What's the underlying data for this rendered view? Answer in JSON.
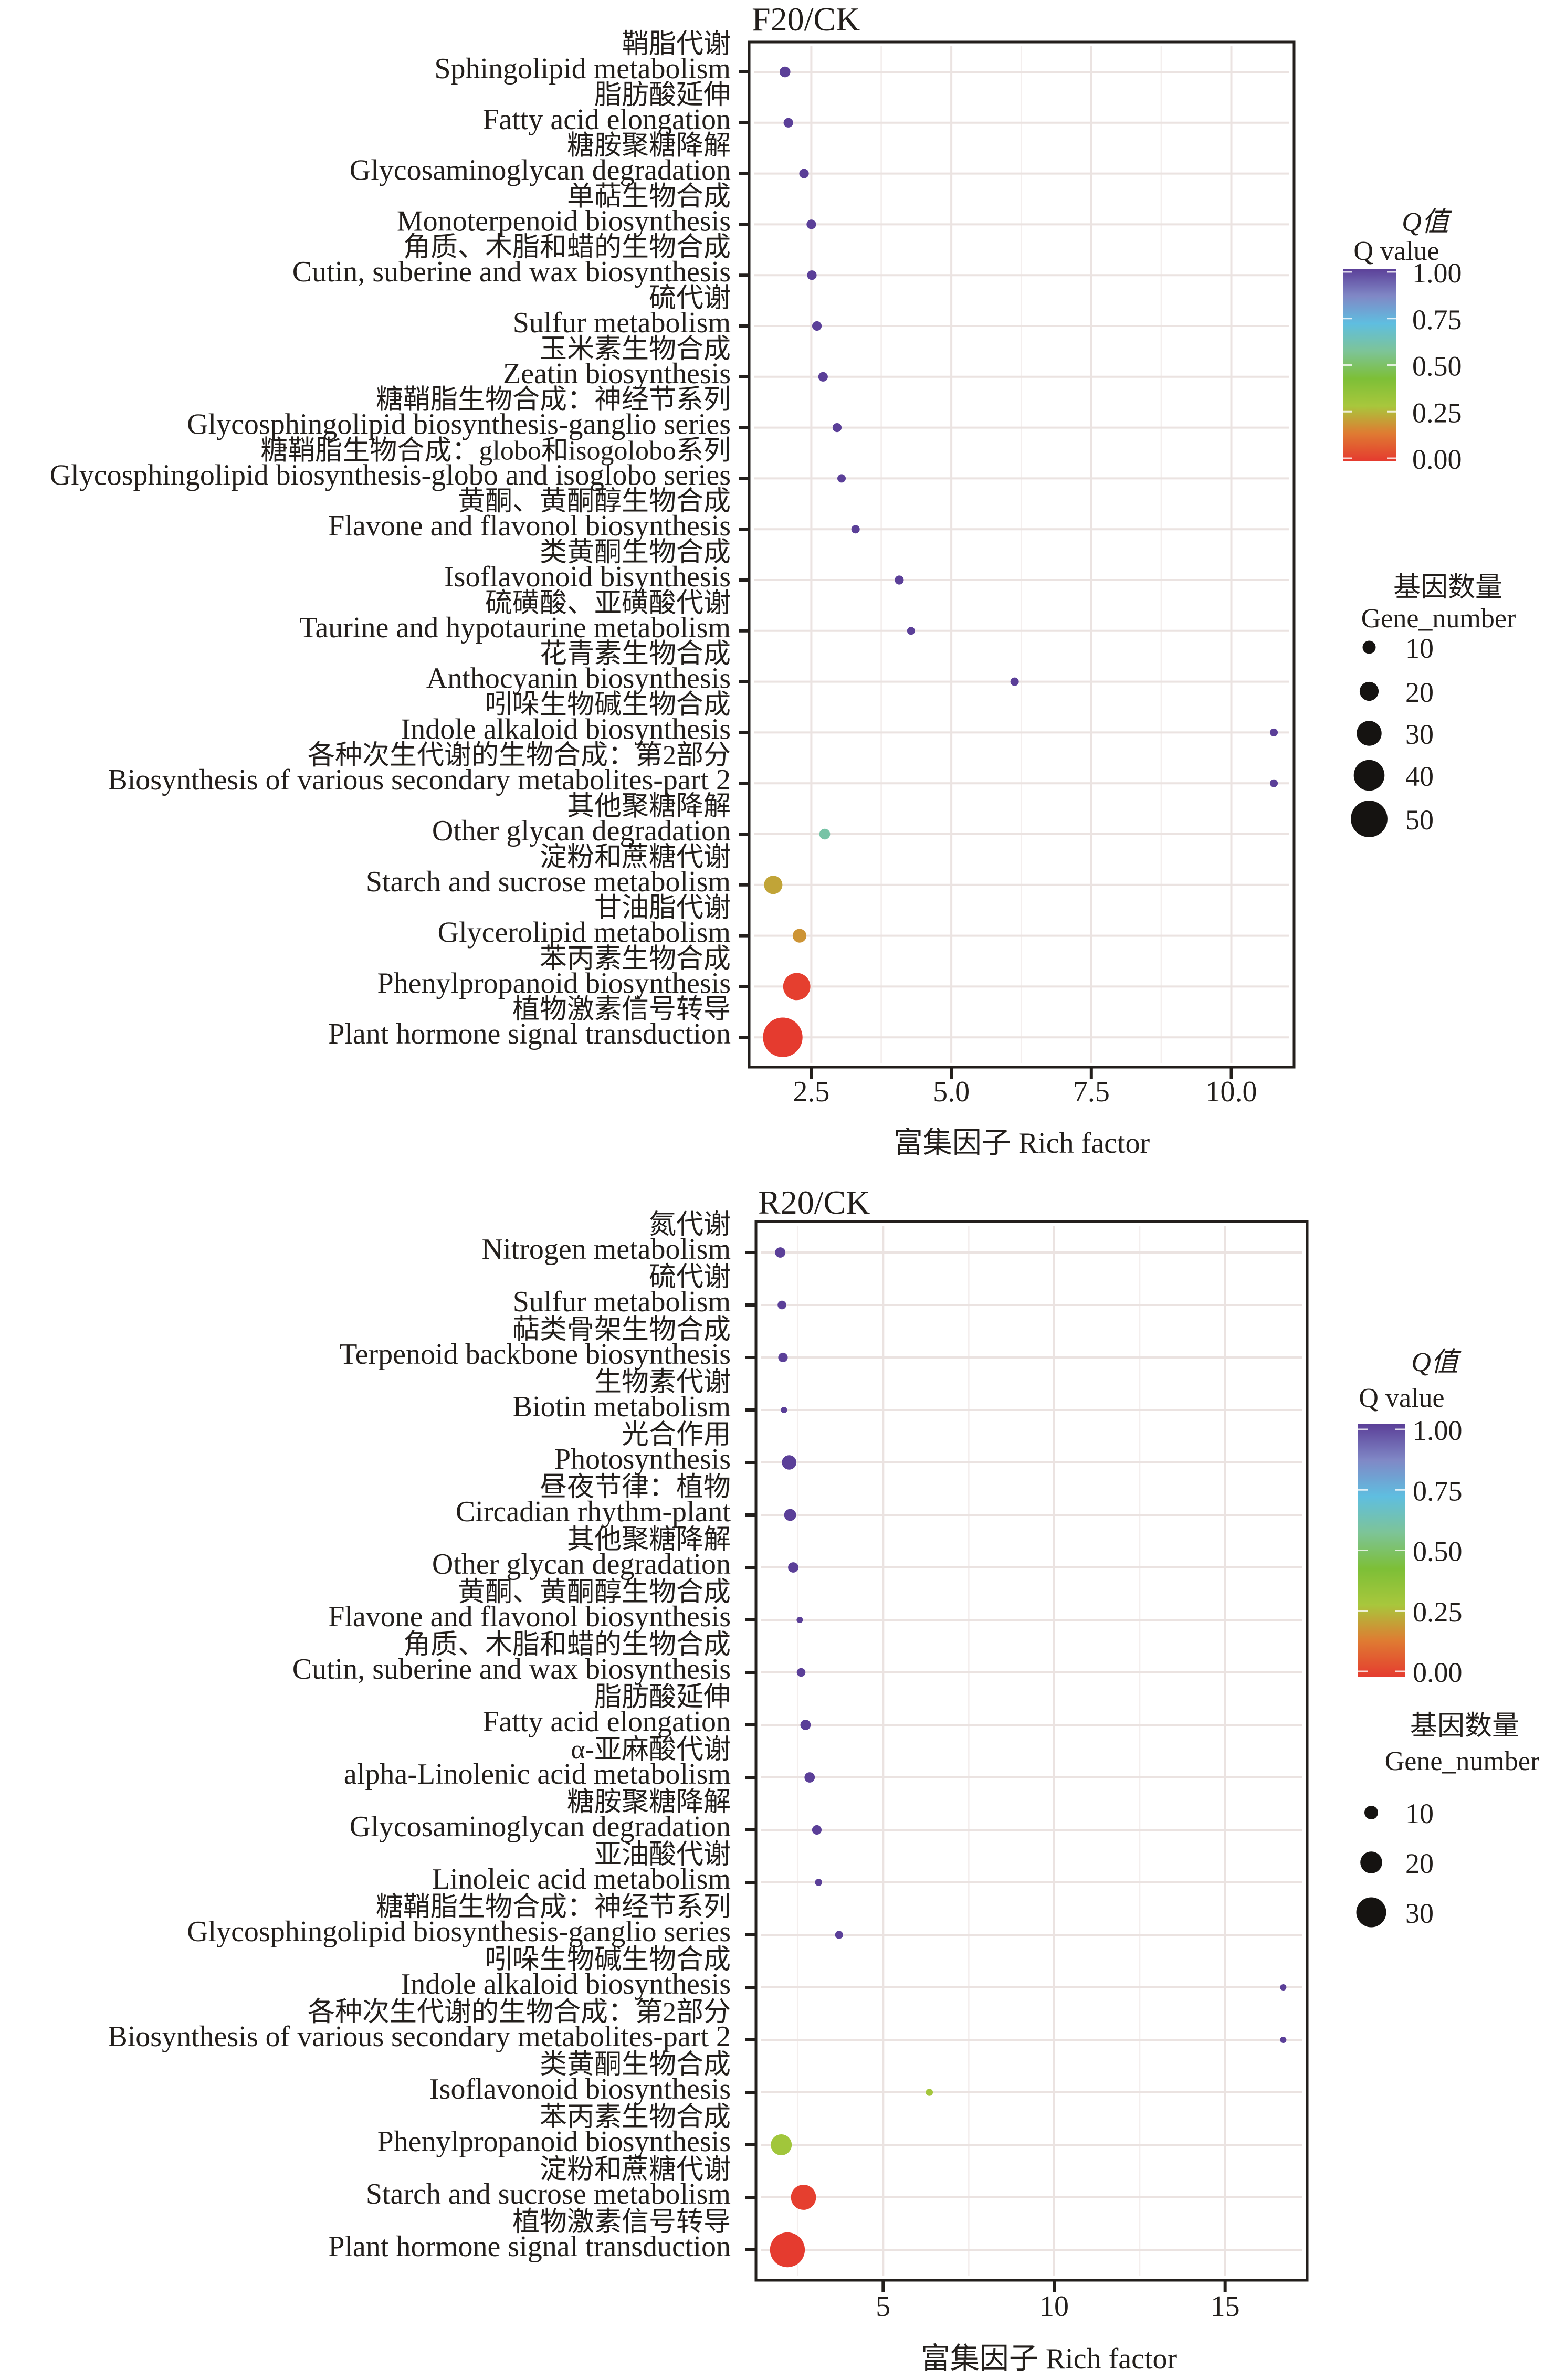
{
  "chart_data": [
    {
      "type": "scatter",
      "subtype": "bubble",
      "title": "F20/CK",
      "xlabel": "富集因子 Rich factor",
      "ylabel": "",
      "xlim": [
        1.39,
        11.12
      ],
      "xticks": [
        2.5,
        5.0,
        7.5,
        10.0
      ],
      "xtick_labels": [
        "2.5",
        "5.0",
        "7.5",
        "10.0"
      ],
      "grid": true,
      "categories": [
        {
          "zh": "鞘脂代谢",
          "en": "Sphingolipid metabolism",
          "rich_factor": 2.03,
          "q_value": 1.0,
          "gene_number": 6
        },
        {
          "zh": "脂肪酸延伸",
          "en": "Fatty acid elongation",
          "rich_factor": 2.09,
          "q_value": 1.0,
          "gene_number": 4
        },
        {
          "zh": "糖胺聚糖降解",
          "en": "Glycosaminoglycan degradation",
          "rich_factor": 2.37,
          "q_value": 1.0,
          "gene_number": 4
        },
        {
          "zh": "单萜生物合成",
          "en": "Monoterpenoid biosynthesis",
          "rich_factor": 2.5,
          "q_value": 1.0,
          "gene_number": 4
        },
        {
          "zh": "角质、木脂和蜡的生物合成",
          "en": "Cutin, suberine and wax biosynthesis",
          "rich_factor": 2.51,
          "q_value": 1.0,
          "gene_number": 4
        },
        {
          "zh": "硫代谢",
          "en": "Sulfur metabolism",
          "rich_factor": 2.6,
          "q_value": 1.0,
          "gene_number": 4
        },
        {
          "zh": "玉米素生物合成",
          "en": "Zeatin biosynthesis",
          "rich_factor": 2.71,
          "q_value": 1.0,
          "gene_number": 4
        },
        {
          "zh": "糖鞘脂生物合成：神经节系列",
          "en": "Glycosphingolipid biosynthesis-ganglio series",
          "rich_factor": 2.96,
          "q_value": 1.0,
          "gene_number": 3
        },
        {
          "zh": "糖鞘脂生物合成：globo和isogolobo系列",
          "en": "Glycosphingolipid biosynthesis-globo and isoglobo series",
          "rich_factor": 3.04,
          "q_value": 1.0,
          "gene_number": 2
        },
        {
          "zh": "黄酮、黄酮醇生物合成",
          "en": "Flavone and flavonol biosynthesis",
          "rich_factor": 3.29,
          "q_value": 1.0,
          "gene_number": 2
        },
        {
          "zh": "类黄酮生物合成",
          "en": "Isoflavonoid bisynthesis",
          "rich_factor": 4.07,
          "q_value": 1.0,
          "gene_number": 3
        },
        {
          "zh": "硫磺酸、亚磺酸代谢",
          "en": "Taurine and hypotaurine metabolism",
          "rich_factor": 4.28,
          "q_value": 1.0,
          "gene_number": 1
        },
        {
          "zh": "花青素生物合成",
          "en": "Anthocyanin biosynthesis",
          "rich_factor": 6.13,
          "q_value": 1.0,
          "gene_number": 2
        },
        {
          "zh": "吲哚生物碱生物合成",
          "en": "Indole alkaloid biosynthesis",
          "rich_factor": 10.76,
          "q_value": 1.0,
          "gene_number": 1
        },
        {
          "zh": "各种次生代谢的生物合成：第2部分",
          "en": "Biosynthesis of various secondary metabolites-part 2",
          "rich_factor": 10.76,
          "q_value": 1.0,
          "gene_number": 1
        },
        {
          "zh": "其他聚糖降解",
          "en": "Other glycan degradation",
          "rich_factor": 2.74,
          "q_value": 0.6,
          "gene_number": 6
        },
        {
          "zh": "淀粉和蔗糖代谢",
          "en": "Starch and sucrose metabolism",
          "rich_factor": 1.82,
          "q_value": 0.22,
          "gene_number": 19
        },
        {
          "zh": "甘油脂代谢",
          "en": "Glycerolipid metabolism",
          "rich_factor": 2.29,
          "q_value": 0.19,
          "gene_number": 11
        },
        {
          "zh": "苯丙素生物合成",
          "en": "Phenylpropanoid biosynthesis",
          "rich_factor": 2.24,
          "q_value": 0.01,
          "gene_number": 34
        },
        {
          "zh": "植物激素信号转导",
          "en": "Plant hormone signal transduction",
          "rich_factor": 1.99,
          "q_value": 0.0,
          "gene_number": 55
        }
      ],
      "color_legend": {
        "title_zh": "Q值",
        "title_en": "Q value",
        "ticks": [
          "1.00",
          "0.75",
          "0.50",
          "0.25",
          "0.00"
        ],
        "range": [
          0,
          1
        ],
        "colors": [
          "#e53b2f",
          "#df7b32",
          "#a8c73c",
          "#7dbf37",
          "#7dc498",
          "#5fbee0",
          "#8088c6",
          "#5b3f98"
        ]
      },
      "size_legend": {
        "title_zh": "基因数量",
        "title_en": "Gene_number",
        "values": [
          10,
          20,
          30,
          40,
          50
        ],
        "labels": [
          "10",
          "20",
          "30",
          "40",
          "50"
        ]
      },
      "legend_position": "right"
    },
    {
      "type": "scatter",
      "subtype": "bubble",
      "title": "R20/CK",
      "xlabel": "富集因子 Rich factor",
      "ylabel": "",
      "xlim": [
        1.28,
        17.4
      ],
      "xticks": [
        5,
        10,
        15
      ],
      "xtick_labels": [
        "5",
        "10",
        "15"
      ],
      "grid": true,
      "categories": [
        {
          "zh": "氮代谢",
          "en": "Nitrogen metabolism",
          "rich_factor": 1.99,
          "q_value": 1.0,
          "gene_number": 6
        },
        {
          "zh": "硫代谢",
          "en": "Sulfur metabolism",
          "rich_factor": 2.04,
          "q_value": 1.0,
          "gene_number": 4
        },
        {
          "zh": "萜类骨架生物合成",
          "en": "Terpenoid backbone biosynthesis",
          "rich_factor": 2.07,
          "q_value": 1.0,
          "gene_number": 5
        },
        {
          "zh": "生物素代谢",
          "en": "Biotin metabolism",
          "rich_factor": 2.1,
          "q_value": 1.0,
          "gene_number": 1
        },
        {
          "zh": "光合作用",
          "en": "Photosynthesis",
          "rich_factor": 2.25,
          "q_value": 1.0,
          "gene_number": 11
        },
        {
          "zh": "昼夜节律：植物",
          "en": "Circadian rhythm-plant",
          "rich_factor": 2.28,
          "q_value": 1.0,
          "gene_number": 8
        },
        {
          "zh": "其他聚糖降解",
          "en": "Other glycan degradation",
          "rich_factor": 2.37,
          "q_value": 1.0,
          "gene_number": 6
        },
        {
          "zh": "黄酮、黄酮醇生物合成",
          "en": "Flavone and flavonol biosynthesis",
          "rich_factor": 2.56,
          "q_value": 1.0,
          "gene_number": 1
        },
        {
          "zh": "角质、木脂和蜡的生物合成",
          "en": "Cutin, suberine and wax biosynthesis",
          "rich_factor": 2.6,
          "q_value": 1.0,
          "gene_number": 4
        },
        {
          "zh": "脂肪酸延伸",
          "en": "Fatty acid elongation",
          "rich_factor": 2.73,
          "q_value": 1.0,
          "gene_number": 6
        },
        {
          "zh": "α-亚麻酸代谢",
          "en": "alpha-Linolenic acid metabolism",
          "rich_factor": 2.85,
          "q_value": 1.0,
          "gene_number": 6
        },
        {
          "zh": "糖胺聚糖降解",
          "en": "Glycosaminoglycan degradation",
          "rich_factor": 3.06,
          "q_value": 1.0,
          "gene_number": 5
        },
        {
          "zh": "亚油酸代谢",
          "en": "Linoleic acid metabolism",
          "rich_factor": 3.11,
          "q_value": 1.0,
          "gene_number": 2
        },
        {
          "zh": "糖鞘脂生物合成：神经节系列",
          "en": "Glycosphingolipid biosynthesis-ganglio series",
          "rich_factor": 3.71,
          "q_value": 1.0,
          "gene_number": 3
        },
        {
          "zh": "吲哚生物碱生物合成",
          "en": "Indole alkaloid biosynthesis",
          "rich_factor": 16.7,
          "q_value": 1.0,
          "gene_number": 1
        },
        {
          "zh": "各种次生代谢的生物合成：第2部分",
          "en": "Biosynthesis of various secondary metabolites-part 2",
          "rich_factor": 16.7,
          "q_value": 1.0,
          "gene_number": 1
        },
        {
          "zh": "类黄酮生物合成",
          "en": "Isoflavonoid biosynthesis",
          "rich_factor": 6.35,
          "q_value": 0.3,
          "gene_number": 2
        },
        {
          "zh": "苯丙素生物合成",
          "en": "Phenylpropanoid biosynthesis",
          "rich_factor": 2.02,
          "q_value": 0.31,
          "gene_number": 19
        },
        {
          "zh": "淀粉和蔗糖代谢",
          "en": "Starch and sucrose metabolism",
          "rich_factor": 2.67,
          "q_value": 0.01,
          "gene_number": 24
        },
        {
          "zh": "植物激素信号转导",
          "en": "Plant hormone signal transduction",
          "rich_factor": 2.2,
          "q_value": 0.0,
          "gene_number": 36
        }
      ],
      "color_legend": {
        "title_zh": "Q值",
        "title_en": "Q value",
        "ticks": [
          "1.00",
          "0.75",
          "0.50",
          "0.25",
          "0.00"
        ],
        "range": [
          0,
          1
        ],
        "colors": [
          "#e53b2f",
          "#df7b32",
          "#a8c73c",
          "#7dbf37",
          "#7dc498",
          "#5fbee0",
          "#8088c6",
          "#5b3f98"
        ]
      },
      "size_legend": {
        "title_zh": "基因数量",
        "title_en": "Gene_number",
        "values": [
          10,
          20,
          30
        ],
        "labels": [
          "10",
          "20",
          "30"
        ]
      },
      "legend_position": "right"
    }
  ]
}
